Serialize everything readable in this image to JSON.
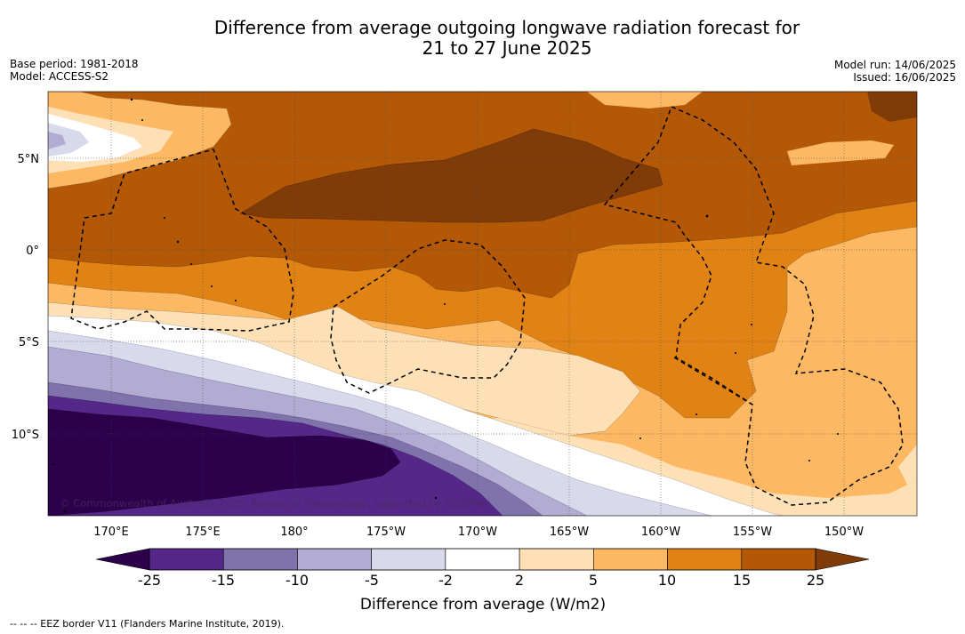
{
  "title": {
    "line1": "Difference from average outgoing longwave radiation forecast for",
    "line2": "21 to 27 June 2025"
  },
  "meta": {
    "base_period": "Base period: 1981-2018",
    "model": "Model: ACCESS-S2",
    "model_run": "Model run: 14/06/2025",
    "issued": "Issued: 16/06/2025"
  },
  "map": {
    "longitude_ticks": [
      "170°E",
      "175°E",
      "180°",
      "175°W",
      "170°W",
      "165°W",
      "160°W",
      "155°W",
      "150°W"
    ],
    "latitude_ticks": [
      "5°N",
      "0°",
      "5°S",
      "10°S"
    ],
    "copyright": "© Commonwealth of Australia 2025, Bureau of Meteorology, supported by COSPPac"
  },
  "colorbar": {
    "ticks": [
      "-25",
      "-15",
      "-10",
      "-5",
      "-2",
      "2",
      "5",
      "10",
      "15",
      "25"
    ],
    "colors": [
      "#2d004b",
      "#542788",
      "#8073ac",
      "#b2abd2",
      "#d8daeb",
      "#ffffff",
      "#fee0b6",
      "#fdb863",
      "#e08214",
      "#b35806",
      "#7f3b08"
    ],
    "title": "Difference from average (W/m2)"
  },
  "legend": {
    "eez": "--  --  -- EEZ border V11 (Flanders Marine Institute, 2019)."
  }
}
